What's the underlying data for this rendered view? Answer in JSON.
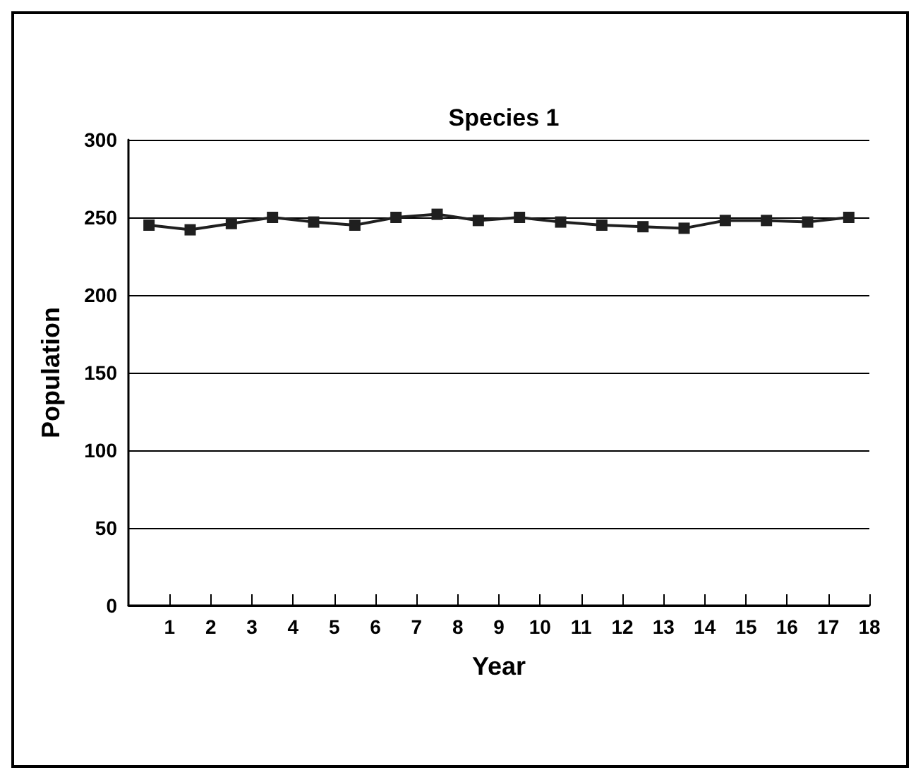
{
  "chart_data": {
    "type": "line",
    "title": "Species 1",
    "xlabel": "Year",
    "ylabel": "Population",
    "x": [
      0.5,
      1.5,
      2.5,
      3.5,
      4.5,
      5.5,
      6.5,
      7.5,
      8.5,
      9.5,
      10.5,
      11.5,
      12.5,
      13.5,
      14.5,
      15.5,
      16.5,
      17.5
    ],
    "series": [
      {
        "color": "#1f1f1f",
        "values": [
          245,
          242,
          246,
          250,
          247,
          245,
          250,
          252,
          248,
          250,
          247,
          245,
          244,
          243,
          248,
          248,
          247,
          250
        ]
      }
    ],
    "xlim": [
      0,
      18
    ],
    "xticks": [
      1,
      2,
      3,
      4,
      5,
      6,
      7,
      8,
      9,
      10,
      11,
      12,
      13,
      14,
      15,
      16,
      17,
      18
    ],
    "ylim": [
      0,
      300
    ],
    "yticks": [
      0,
      50,
      100,
      150,
      200,
      250,
      300
    ],
    "grid": "y",
    "marker": "square",
    "line_style": "solid"
  }
}
